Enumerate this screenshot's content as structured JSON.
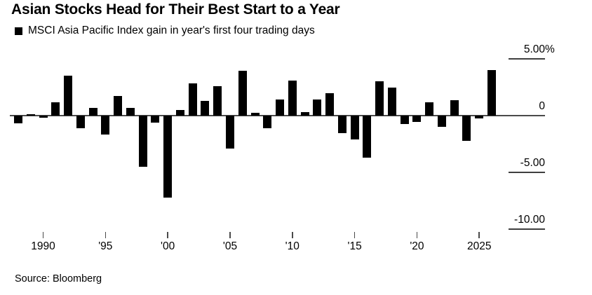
{
  "title": "Asian Stocks Head for Their Best Start to a Year",
  "legend": {
    "marker_icon": "black-square",
    "label": "MSCI Asia Pacific Index gain in year's first four trading days"
  },
  "source": "Source: Bloomberg",
  "colors": {
    "bar": "#000000",
    "axis_line": "#4a4a4a",
    "text": "#000000",
    "background": "#ffffff"
  },
  "chart_data": {
    "type": "bar",
    "title": "Asian Stocks Head for Their Best Start to a Year",
    "subtitle": "MSCI Asia Pacific Index gain in year's first four trading days",
    "unit": "percent",
    "x": [
      1988,
      1989,
      1990,
      1991,
      1992,
      1993,
      1994,
      1995,
      1996,
      1997,
      1998,
      1999,
      2000,
      2001,
      2002,
      2003,
      2004,
      2005,
      2006,
      2007,
      2008,
      2009,
      2010,
      2011,
      2012,
      2013,
      2014,
      2015,
      2016,
      2017,
      2018,
      2019,
      2020,
      2021,
      2022,
      2023,
      2024,
      2025,
      2026
    ],
    "values": [
      -0.7,
      0.15,
      -0.2,
      1.2,
      3.5,
      -1.1,
      0.7,
      -1.65,
      1.7,
      0.7,
      -4.5,
      -0.6,
      -7.2,
      0.5,
      2.85,
      1.3,
      2.6,
      -2.9,
      3.95,
      0.27,
      -1.1,
      1.45,
      3.1,
      0.3,
      1.45,
      2.0,
      -1.55,
      -2.1,
      -3.7,
      3.05,
      2.5,
      -0.75,
      -0.55,
      1.15,
      -1.0,
      1.35,
      -2.2,
      -0.25,
      4.0
    ],
    "ylim": [
      -10,
      5
    ],
    "ylabel": "",
    "xlabel": "",
    "y_ticks": [
      {
        "value": 5,
        "label": "5.00%"
      },
      {
        "value": 0,
        "label": "0"
      },
      {
        "value": -5,
        "label": "-5.00"
      },
      {
        "value": -10,
        "label": "-10.00"
      }
    ],
    "x_ticks": [
      {
        "value": 1990,
        "label": "1990"
      },
      {
        "value": 1995,
        "label": "'95"
      },
      {
        "value": 2000,
        "label": "'00"
      },
      {
        "value": 2005,
        "label": "'05"
      },
      {
        "value": 2010,
        "label": "'10"
      },
      {
        "value": 2015,
        "label": "'15"
      },
      {
        "value": 2020,
        "label": "'20"
      },
      {
        "value": 2025,
        "label": "2025"
      }
    ],
    "grid": "right-side-stubs-only",
    "legend_position": "top-left",
    "bar_color": "#000000"
  }
}
